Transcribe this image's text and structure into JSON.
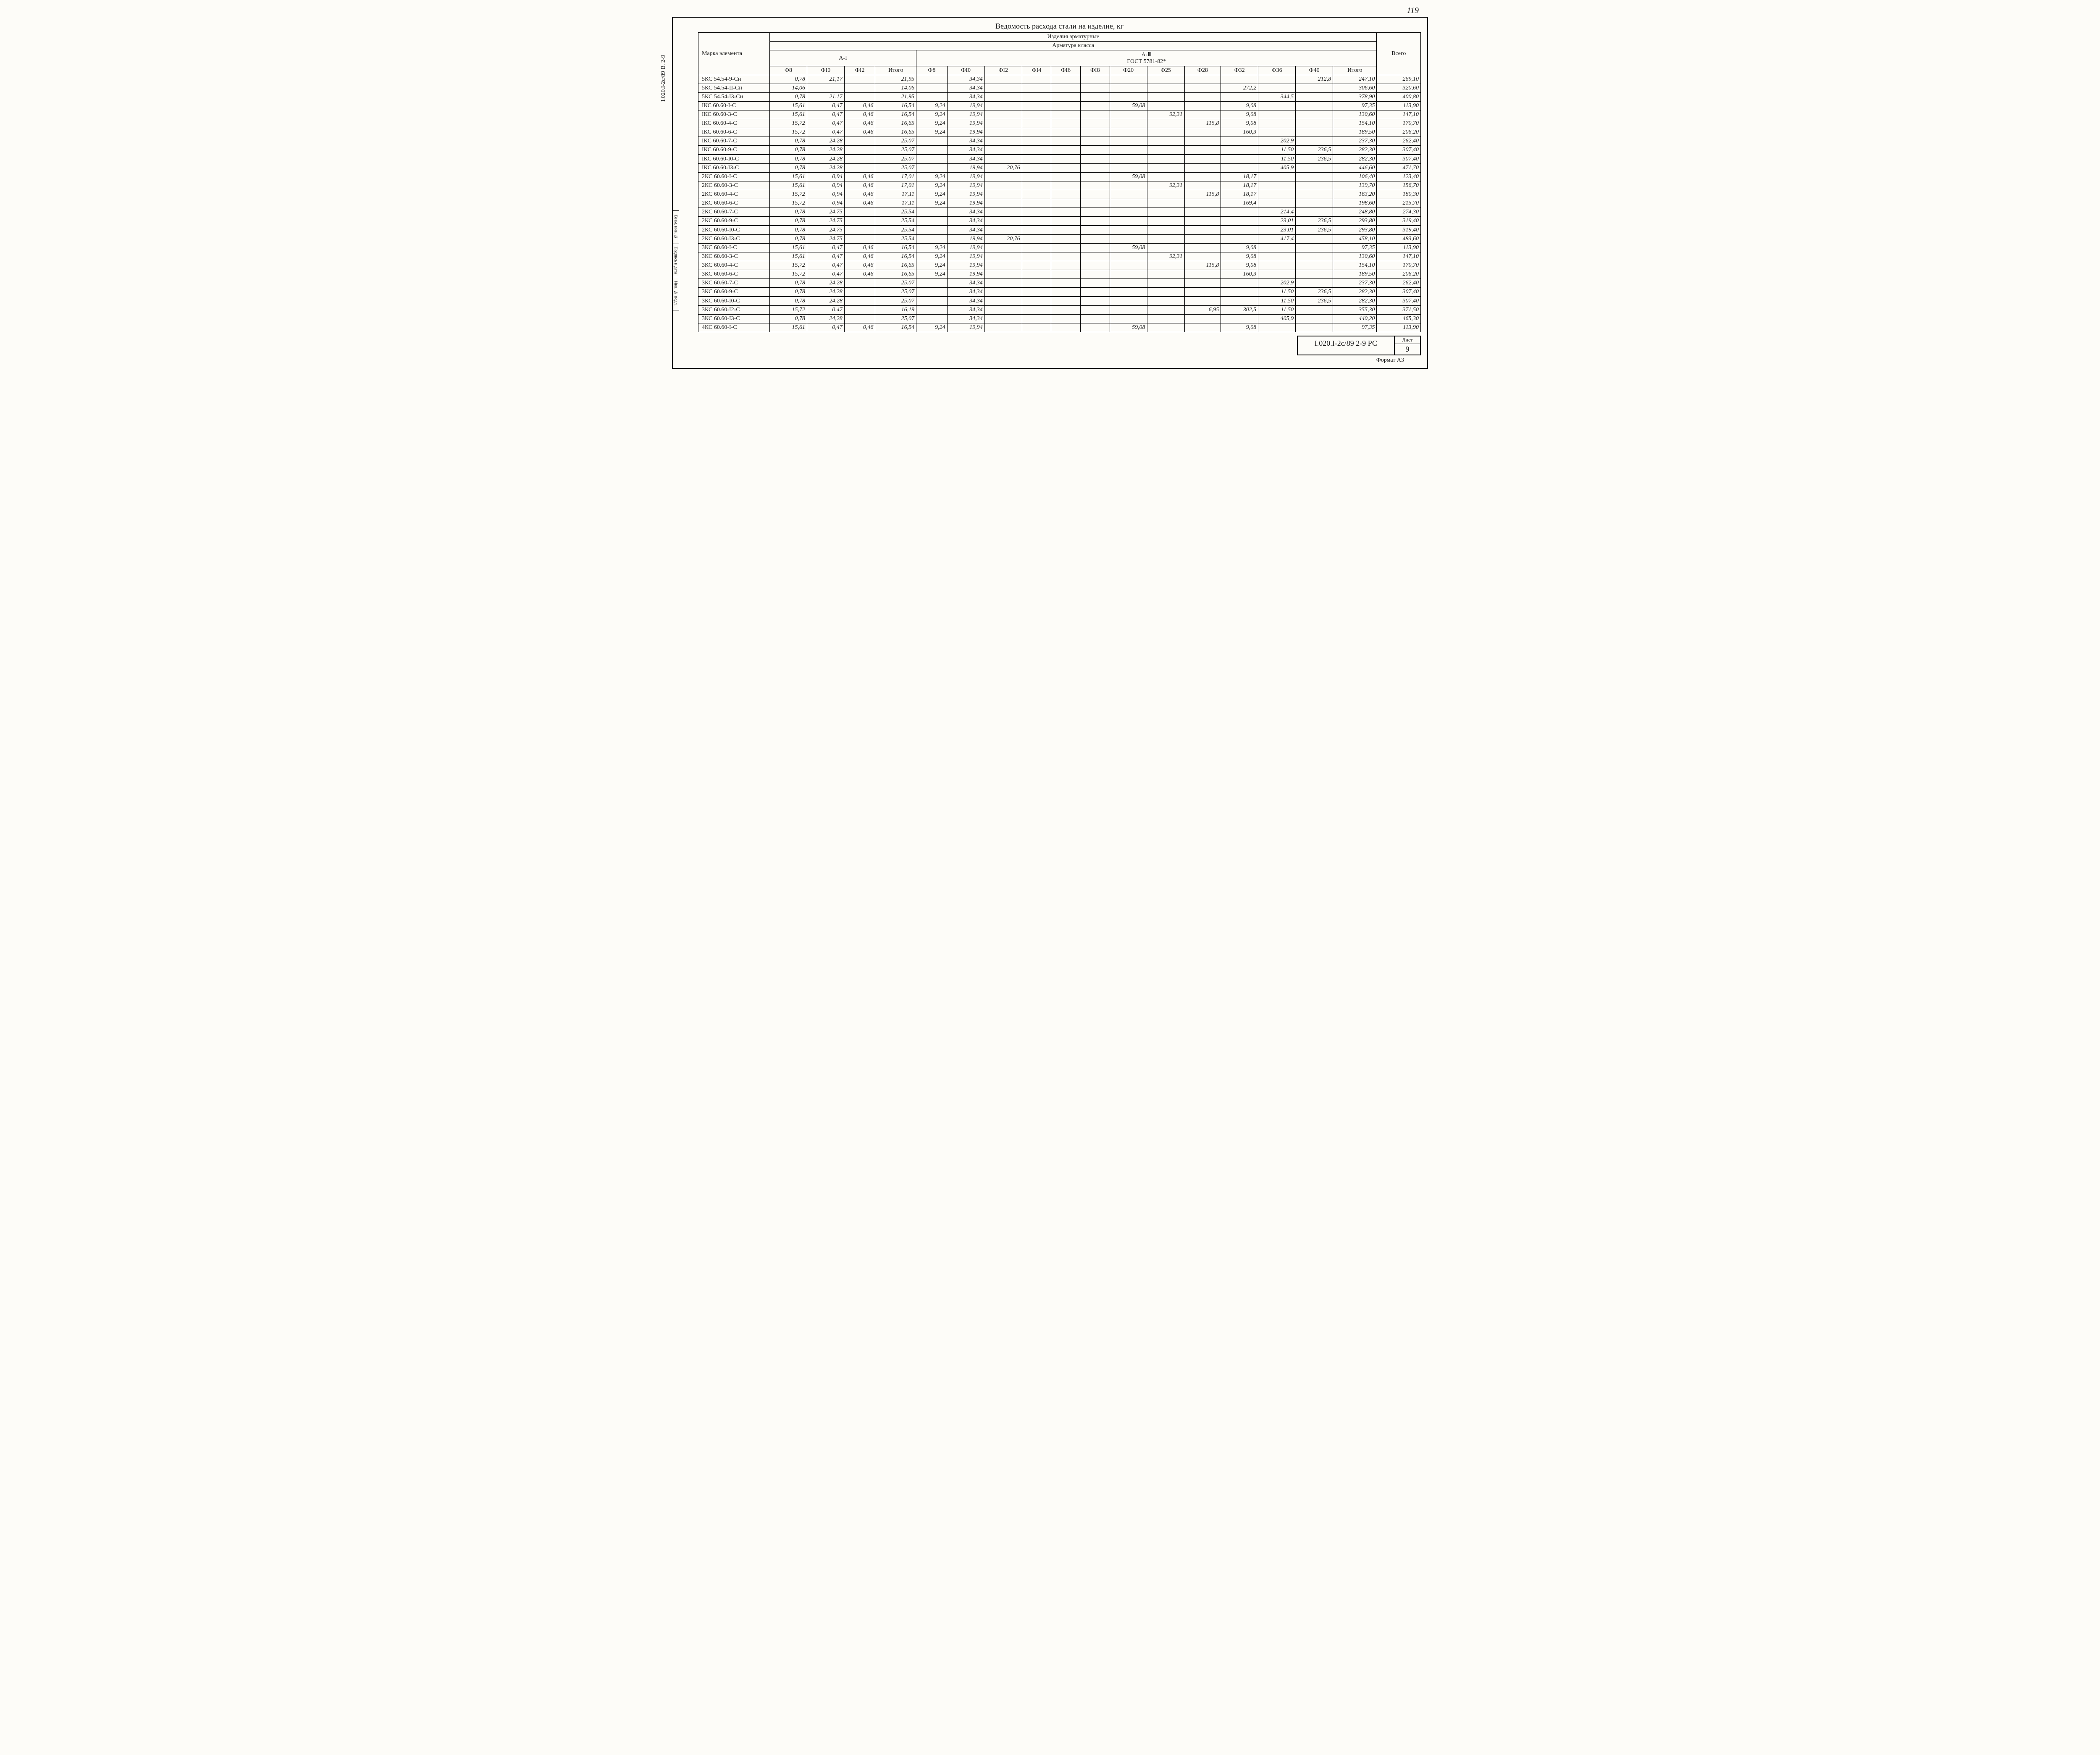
{
  "page_number_top": "119",
  "title": "Ведомость расхода стали на изделие, кг",
  "side_doc_label": "I.020.I-2с/89   В. 2-9",
  "vertical_labels": [
    "Взам. инв. №",
    "Подпись и дата",
    "Инв. № подл."
  ],
  "header": {
    "col_element": "Марка элемента",
    "span_products": "Изделия арматурные",
    "span_class": "Арматура класса",
    "class_a1": "A-I",
    "class_a3": "A-Ⅲ",
    "gost": "ГОСТ 5781-82*",
    "col_total": "Всего",
    "cols_a1": [
      "Ф8",
      "ФI0",
      "ФI2",
      "Итого"
    ],
    "cols_a3": [
      "Ф8",
      "ФI0",
      "ФI2",
      "ФI4",
      "ФI6",
      "ФI8",
      "Ф20",
      "Ф25",
      "Ф28",
      "Ф32",
      "Ф36",
      "Ф40",
      "Итого"
    ]
  },
  "rows": [
    {
      "el": "5КС 54.54-9-Сн",
      "a1": [
        "0,78",
        "21,17",
        "",
        "21,95"
      ],
      "a3": [
        "",
        "34,34",
        "",
        "",
        "",
        "",
        "",
        "",
        "",
        "",
        "",
        "212,8",
        "247,10"
      ],
      "total": "269,10"
    },
    {
      "el": "5КС 54.54-II-Сн",
      "a1": [
        "14,06",
        "",
        "",
        "14,06"
      ],
      "a3": [
        "",
        "34,34",
        "",
        "",
        "",
        "",
        "",
        "",
        "",
        "272,2",
        "",
        "",
        "306,60"
      ],
      "total": "320,60"
    },
    {
      "el": "5КС 54.54-I3-Сн",
      "a1": [
        "0,78",
        "21,17",
        "",
        "21,95"
      ],
      "a3": [
        "",
        "34,34",
        "",
        "",
        "",
        "",
        "",
        "",
        "",
        "",
        "344,5",
        "",
        "378,90"
      ],
      "total": "400,80"
    },
    {
      "el": "IКС 60.60-I-С",
      "a1": [
        "15,61",
        "0,47",
        "0,46",
        "16,54"
      ],
      "a3": [
        "9,24",
        "19,94",
        "",
        "",
        "",
        "",
        "59,08",
        "",
        "",
        "9,08",
        "",
        "",
        "97,35"
      ],
      "total": "113,90"
    },
    {
      "el": "IКС 60.60-3-С",
      "a1": [
        "15,61",
        "0,47",
        "0,46",
        "16,54"
      ],
      "a3": [
        "9,24",
        "19,94",
        "",
        "",
        "",
        "",
        "",
        "92,31",
        "",
        "9,08",
        "",
        "",
        "130,60"
      ],
      "total": "147,10"
    },
    {
      "el": "IКС 60.60-4-С",
      "a1": [
        "15,72",
        "0,47",
        "0,46",
        "16,65"
      ],
      "a3": [
        "9,24",
        "19,94",
        "",
        "",
        "",
        "",
        "",
        "",
        "115,8",
        "9,08",
        "",
        "",
        "154,10"
      ],
      "total": "170,70"
    },
    {
      "el": "IКС 60.60-6-С",
      "a1": [
        "15,72",
        "0,47",
        "0,46",
        "16,65"
      ],
      "a3": [
        "9,24",
        "19,94",
        "",
        "",
        "",
        "",
        "",
        "",
        "",
        "160,3",
        "",
        "",
        "189,50"
      ],
      "total": "206,20"
    },
    {
      "el": "IКС 60.60-7-С",
      "a1": [
        "0,78",
        "24,28",
        "",
        "25,07"
      ],
      "a3": [
        "",
        "34,34",
        "",
        "",
        "",
        "",
        "",
        "",
        "",
        "",
        "202,9",
        "",
        "237,30"
      ],
      "total": "262,40"
    },
    {
      "el": "IКС 60.60-9-С",
      "a1": [
        "0,78",
        "24,28",
        "",
        "25,07"
      ],
      "a3": [
        "",
        "34,34",
        "",
        "",
        "",
        "",
        "",
        "",
        "",
        "",
        "11,50",
        "236,5",
        "282,30"
      ],
      "total": "307,40"
    },
    {
      "el": "IКС 60.60-I0-С",
      "a1": [
        "0,78",
        "24,28",
        "",
        "25,07"
      ],
      "a3": [
        "",
        "34,34",
        "",
        "",
        "",
        "",
        "",
        "",
        "",
        "",
        "11,50",
        "236,5",
        "282,30"
      ],
      "total": "307,40",
      "sep": true
    },
    {
      "el": "IКС 60.60-I3-С",
      "a1": [
        "0,78",
        "24,28",
        "",
        "25,07"
      ],
      "a3": [
        "",
        "19,94",
        "20,76",
        "",
        "",
        "",
        "",
        "",
        "",
        "",
        "405,9",
        "",
        "446,60"
      ],
      "total": "471,70"
    },
    {
      "el": "2КС 60.60-I-С",
      "a1": [
        "15,61",
        "0,94",
        "0,46",
        "17,01"
      ],
      "a3": [
        "9,24",
        "19,94",
        "",
        "",
        "",
        "",
        "59,08",
        "",
        "",
        "18,17",
        "",
        "",
        "106,40"
      ],
      "total": "123,40"
    },
    {
      "el": "2КС 60.60-3-С",
      "a1": [
        "15,61",
        "0,94",
        "0,46",
        "17,01"
      ],
      "a3": [
        "9,24",
        "19,94",
        "",
        "",
        "",
        "",
        "",
        "92,31",
        "",
        "18,17",
        "",
        "",
        "139,70"
      ],
      "total": "156,70"
    },
    {
      "el": "2КС 60.60-4-С",
      "a1": [
        "15,72",
        "0,94",
        "0,46",
        "17,11"
      ],
      "a3": [
        "9,24",
        "19,94",
        "",
        "",
        "",
        "",
        "",
        "",
        "115,8",
        "18,17",
        "",
        "",
        "163,20"
      ],
      "total": "180,30"
    },
    {
      "el": "2КС 60.60-6-С",
      "a1": [
        "15,72",
        "0,94",
        "0,46",
        "17,11"
      ],
      "a3": [
        "9,24",
        "19,94",
        "",
        "",
        "",
        "",
        "",
        "",
        "",
        "169,4",
        "",
        "",
        "198,60"
      ],
      "total": "215,70"
    },
    {
      "el": "2КС 60.60-7-С",
      "a1": [
        "0,78",
        "24,75",
        "",
        "25,54"
      ],
      "a3": [
        "",
        "34,34",
        "",
        "",
        "",
        "",
        "",
        "",
        "",
        "",
        "214,4",
        "",
        "248,80"
      ],
      "total": "274,30"
    },
    {
      "el": "2КС 60.60-9-С",
      "a1": [
        "0,78",
        "24,75",
        "",
        "25,54"
      ],
      "a3": [
        "",
        "34,34",
        "",
        "",
        "",
        "",
        "",
        "",
        "",
        "",
        "23,01",
        "236,5",
        "293,80"
      ],
      "total": "319,40"
    },
    {
      "el": "2КС 60.60-I0-С",
      "a1": [
        "0,78",
        "24,75",
        "",
        "25,54"
      ],
      "a3": [
        "",
        "34,34",
        "",
        "",
        "",
        "",
        "",
        "",
        "",
        "",
        "23,01",
        "236,5",
        "293,80"
      ],
      "total": "319,40",
      "sep": true
    },
    {
      "el": "2КС 60.60-I3-С",
      "a1": [
        "0,78",
        "24,75",
        "",
        "25,54"
      ],
      "a3": [
        "",
        "19,94",
        "20,76",
        "",
        "",
        "",
        "",
        "",
        "",
        "",
        "417,4",
        "",
        "458,10"
      ],
      "total": "483,60"
    },
    {
      "el": "3КС 60.60-I-С",
      "a1": [
        "15,61",
        "0,47",
        "0,46",
        "16,54"
      ],
      "a3": [
        "9,24",
        "19,94",
        "",
        "",
        "",
        "",
        "59,08",
        "",
        "",
        "9,08",
        "",
        "",
        "97,35"
      ],
      "total": "113,90"
    },
    {
      "el": "3КС 60.60-3-С",
      "a1": [
        "15,61",
        "0,47",
        "0,46",
        "16,54"
      ],
      "a3": [
        "9,24",
        "19,94",
        "",
        "",
        "",
        "",
        "",
        "92,31",
        "",
        "9,08",
        "",
        "",
        "130,60"
      ],
      "total": "147,10"
    },
    {
      "el": "3КС 60.60-4-С",
      "a1": [
        "15,72",
        "0,47",
        "0,46",
        "16,65"
      ],
      "a3": [
        "9,24",
        "19,94",
        "",
        "",
        "",
        "",
        "",
        "",
        "115,8",
        "9,08",
        "",
        "",
        "154,10"
      ],
      "total": "170,70"
    },
    {
      "el": "3КС 60.60-6-С",
      "a1": [
        "15,72",
        "0,47",
        "0,46",
        "16,65"
      ],
      "a3": [
        "9,24",
        "19,94",
        "",
        "",
        "",
        "",
        "",
        "",
        "",
        "160,3",
        "",
        "",
        "189,50"
      ],
      "total": "206,20"
    },
    {
      "el": "3КС 60.60-7-С",
      "a1": [
        "0,78",
        "24,28",
        "",
        "25,07"
      ],
      "a3": [
        "",
        "34,34",
        "",
        "",
        "",
        "",
        "",
        "",
        "",
        "",
        "202,9",
        "",
        "237,30"
      ],
      "total": "262,40"
    },
    {
      "el": "3КС 60.60-9-С",
      "a1": [
        "0,78",
        "24,28",
        "",
        "25,07"
      ],
      "a3": [
        "",
        "34,34",
        "",
        "",
        "",
        "",
        "",
        "",
        "",
        "",
        "11,50",
        "236,5",
        "282,30"
      ],
      "total": "307,40"
    },
    {
      "el": "3КС 60.60-I0-С",
      "a1": [
        "0,78",
        "24,28",
        "",
        "25,07"
      ],
      "a3": [
        "",
        "34,34",
        "",
        "",
        "",
        "",
        "",
        "",
        "",
        "",
        "11,50",
        "236,5",
        "282,30"
      ],
      "total": "307,40",
      "sep": true
    },
    {
      "el": "3КС 60.60-I2-С",
      "a1": [
        "15,72",
        "0,47",
        "",
        "16,19"
      ],
      "a3": [
        "",
        "34,34",
        "",
        "",
        "",
        "",
        "",
        "",
        "6,95",
        "302,5",
        "11,50",
        "",
        "355,30"
      ],
      "total": "371,50"
    },
    {
      "el": "3КС 60.60-I3-С",
      "a1": [
        "0,78",
        "24,28",
        "",
        "25,07"
      ],
      "a3": [
        "",
        "34,34",
        "",
        "",
        "",
        "",
        "",
        "",
        "",
        "",
        "405,9",
        "",
        "440,20"
      ],
      "total": "465,30"
    },
    {
      "el": "4КС 60.60-I-С",
      "a1": [
        "15,61",
        "0,47",
        "0,46",
        "16,54"
      ],
      "a3": [
        "9,24",
        "19,94",
        "",
        "",
        "",
        "",
        "59,08",
        "",
        "",
        "9,08",
        "",
        "",
        "97,35"
      ],
      "total": "113,90"
    }
  ],
  "title_block": {
    "doc_number": "I.020.I-2с/89  2-9  РС",
    "sheet_label": "Лист",
    "sheet_number": "9"
  },
  "format": "Формат А3"
}
